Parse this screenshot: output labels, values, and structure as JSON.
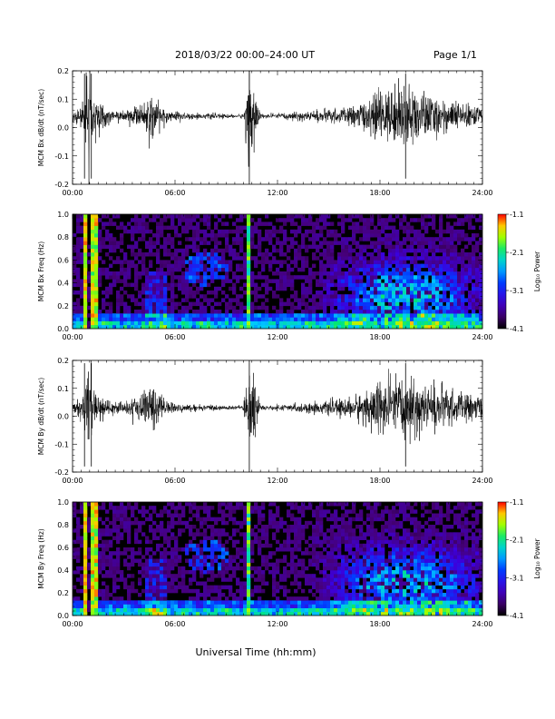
{
  "header": {
    "title": "2018/03/22  00:00–24:00 UT",
    "page": "Page 1/1"
  },
  "xaxis": {
    "label": "Universal Time (hh:mm)",
    "ticks": [
      "00:00",
      "06:00",
      "12:00",
      "18:00",
      "24:00"
    ],
    "range_hours": [
      0,
      24
    ]
  },
  "chart_data": [
    {
      "type": "line",
      "ylabel": "MCM Bx dB/dt (nT/sec)",
      "ylim": [
        -0.2,
        0.2
      ],
      "yticks": [
        "-0.2",
        "-0.1",
        "0.0",
        "0.1",
        "0.2"
      ],
      "x_hours": [
        0,
        0.6,
        0.9,
        1.2,
        2,
        3,
        4,
        4.6,
        5,
        5.5,
        6,
        7,
        8,
        9,
        10,
        10.35,
        11,
        12,
        13,
        14,
        15,
        16,
        17,
        17.8,
        18.5,
        19.5,
        20.5,
        21.5,
        22.5,
        23.5,
        24
      ],
      "amplitude": [
        0.02,
        0.04,
        0.2,
        0.08,
        0.03,
        0.02,
        0.04,
        0.08,
        0.05,
        0.03,
        0.02,
        0.01,
        0.01,
        0.008,
        0.008,
        0.2,
        0.008,
        0.01,
        0.015,
        0.02,
        0.025,
        0.03,
        0.05,
        0.09,
        0.1,
        0.11,
        0.09,
        0.07,
        0.05,
        0.04,
        0.03
      ],
      "baseline": 0.04,
      "color": "#000000"
    },
    {
      "type": "heatmap",
      "ylabel": "MCM Bx Freq (Hz)",
      "ylim": [
        0,
        1.0
      ],
      "yticks": [
        "0.0",
        "0.2",
        "0.4",
        "0.6",
        "0.8",
        "1.0"
      ],
      "colorbar": {
        "label": "Log₁₀ Power",
        "ticks": [
          "-1.1",
          "-2.1",
          "-3.1",
          "-4.1"
        ],
        "range": [
          -4.1,
          -1.1
        ]
      }
    },
    {
      "type": "line",
      "ylabel": "MCM By dB/dt (nT/sec)",
      "ylim": [
        -0.2,
        0.2
      ],
      "yticks": [
        "-0.2",
        "-0.1",
        "0.0",
        "0.1",
        "0.2"
      ],
      "x_hours": [
        0,
        0.6,
        0.9,
        1.2,
        2,
        3,
        4,
        4.6,
        5,
        5.5,
        6,
        7,
        8,
        9,
        10,
        10.35,
        11,
        12,
        13,
        14,
        15,
        16,
        17,
        17.8,
        18.5,
        19.5,
        20.5,
        21.5,
        22.5,
        23.5,
        24
      ],
      "amplitude": [
        0.02,
        0.04,
        0.2,
        0.08,
        0.03,
        0.025,
        0.05,
        0.1,
        0.06,
        0.03,
        0.02,
        0.012,
        0.01,
        0.008,
        0.008,
        0.2,
        0.008,
        0.01,
        0.015,
        0.02,
        0.025,
        0.035,
        0.06,
        0.1,
        0.11,
        0.11,
        0.1,
        0.08,
        0.06,
        0.05,
        0.04
      ],
      "baseline": 0.03,
      "color": "#000000"
    },
    {
      "type": "heatmap",
      "ylabel": "MCM By Freq (Hz)",
      "ylim": [
        0,
        1.0
      ],
      "yticks": [
        "0.0",
        "0.2",
        "0.4",
        "0.6",
        "0.8",
        "1.0"
      ],
      "colorbar": {
        "label": "Log₁₀ Power",
        "ticks": [
          "-1.1",
          "-2.1",
          "-3.1",
          "-4.1"
        ],
        "range": [
          -4.1,
          -1.1
        ]
      }
    }
  ]
}
